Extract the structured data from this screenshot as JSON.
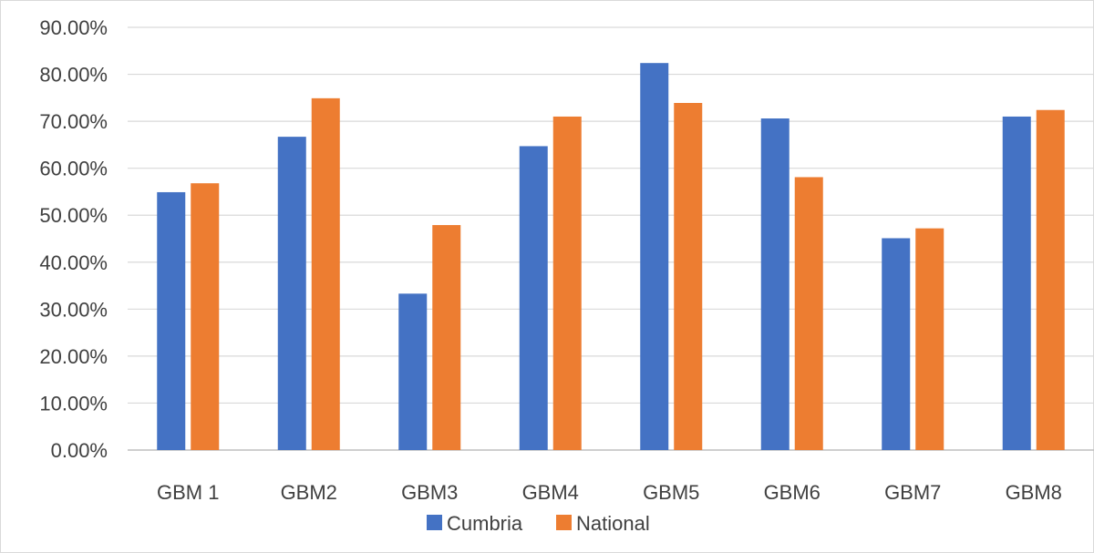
{
  "chart_data": {
    "type": "bar",
    "categories": [
      "GBM 1",
      "GBM2",
      "GBM3",
      "GBM4",
      "GBM5",
      "GBM6",
      "GBM7",
      "GBM8"
    ],
    "series": [
      {
        "name": "Cumbria",
        "color": "#4472C4",
        "values": [
          54.9,
          66.7,
          33.3,
          64.7,
          82.4,
          70.6,
          45.1,
          71.0
        ]
      },
      {
        "name": "National",
        "color": "#ED7D31",
        "values": [
          56.8,
          74.9,
          47.9,
          71.0,
          73.9,
          58.1,
          47.2,
          72.4
        ]
      }
    ],
    "ylim": [
      0,
      90
    ],
    "yticks": [
      0,
      10,
      20,
      30,
      40,
      50,
      60,
      70,
      80,
      90
    ],
    "ytick_labels": [
      "0.00%",
      "10.00%",
      "20.00%",
      "30.00%",
      "40.00%",
      "50.00%",
      "60.00%",
      "70.00%",
      "80.00%",
      "90.00%"
    ],
    "grid": true,
    "legend_position": "bottom",
    "gridline_color": "#d9d9d9",
    "axis_color": "#bfbfbf"
  }
}
